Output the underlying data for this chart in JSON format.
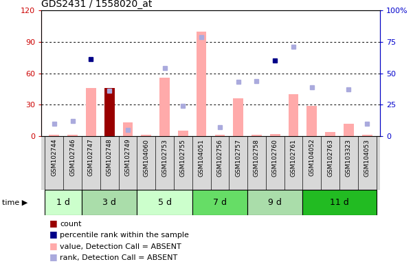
{
  "title": "GDS2431 / 1558020_at",
  "samples": [
    "GSM102744",
    "GSM102746",
    "GSM102747",
    "GSM102748",
    "GSM102749",
    "GSM104060",
    "GSM102753",
    "GSM102755",
    "GSM104051",
    "GSM102756",
    "GSM102757",
    "GSM102758",
    "GSM102760",
    "GSM102761",
    "GSM104052",
    "GSM102763",
    "GSM103323",
    "GSM104053"
  ],
  "time_groups": [
    {
      "label": "1 d",
      "start": 0,
      "end": 1,
      "color": "#ccffcc"
    },
    {
      "label": "3 d",
      "start": 2,
      "end": 4,
      "color": "#99ee99"
    },
    {
      "label": "5 d",
      "start": 5,
      "end": 7,
      "color": "#ccffcc"
    },
    {
      "label": "7 d",
      "start": 8,
      "end": 10,
      "color": "#66dd66"
    },
    {
      "label": "9 d",
      "start": 11,
      "end": 13,
      "color": "#99ee99"
    },
    {
      "label": "11 d",
      "start": 14,
      "end": 17,
      "color": "#33cc33"
    }
  ],
  "bar_values": [
    1,
    1,
    46,
    46,
    13,
    1,
    56,
    5,
    100,
    1,
    36,
    1,
    2,
    40,
    29,
    4,
    12,
    1
  ],
  "bar_colors": [
    "#ffaaaa",
    "#ffaaaa",
    "#ffaaaa",
    "#990000",
    "#ffaaaa",
    "#ffaaaa",
    "#ffaaaa",
    "#ffaaaa",
    "#ffaaaa",
    "#ffaaaa",
    "#ffaaaa",
    "#ffaaaa",
    "#ffaaaa",
    "#ffaaaa",
    "#ffaaaa",
    "#ffaaaa",
    "#ffaaaa",
    "#ffaaaa"
  ],
  "rank_squares": [
    10,
    12,
    null,
    36,
    5,
    null,
    54,
    24,
    79,
    7,
    43,
    44,
    null,
    71,
    39,
    null,
    37,
    10
  ],
  "percentile_squares": [
    null,
    null,
    61,
    null,
    null,
    null,
    null,
    null,
    null,
    null,
    null,
    null,
    60,
    null,
    null,
    null,
    null,
    null
  ],
  "left_ylim": [
    0,
    120
  ],
  "right_yticks": [
    0,
    25,
    50,
    75,
    100
  ],
  "right_yticklabels": [
    "0",
    "25",
    "50",
    "75",
    "100%"
  ],
  "left_yticks": [
    0,
    30,
    60,
    90,
    120
  ],
  "left_color": "#cc0000",
  "right_color": "#0000cc",
  "group_colors": [
    "#ccffcc",
    "#aaddaa",
    "#ccffcc",
    "#66dd66",
    "#aaddaa",
    "#22bb22"
  ]
}
